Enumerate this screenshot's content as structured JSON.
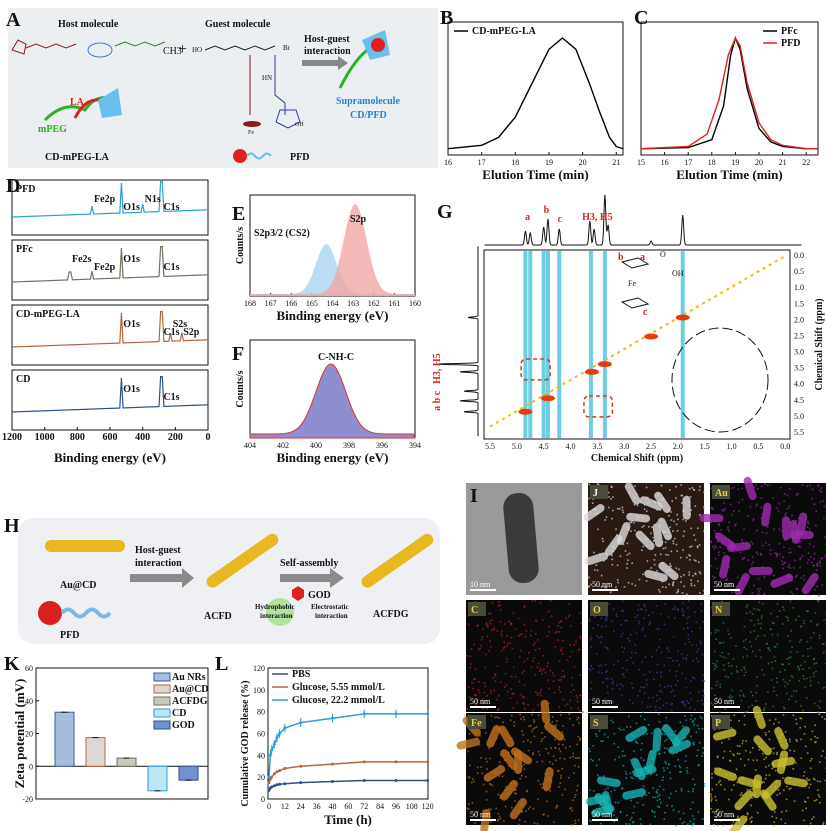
{
  "panels": {
    "A": {
      "letter": "A",
      "host": "Host molecule",
      "guest": "Guest molecule",
      "arrow": "Host-guest interaction",
      "arrow2": "interaction",
      "arrow1": "Host-guest",
      "la": "LA",
      "mpeg": "mPEG",
      "cd_name": "CD-mPEG-LA",
      "pfd": "PFD",
      "supra1": "Supramolecule",
      "supra2": "CD/PFD",
      "plus": "+",
      "ch3": "CH3",
      "fe": "Fe",
      "br": "Br",
      "ho": "HO",
      "hn": "HN",
      "oh": "OH"
    },
    "B": {
      "letter": "B"
    },
    "C": {
      "letter": "C"
    },
    "D": {
      "letter": "D",
      "xlabel": "Binding energy (eV)",
      "xticks": [
        "1200",
        "1000",
        "800",
        "600",
        "400",
        "200",
        "0"
      ],
      "spectra": [
        {
          "name": "PFD",
          "color": "#2a9fd8",
          "peaks": [
            "Fe2p",
            "O1s",
            "N1s",
            "C1s"
          ]
        },
        {
          "name": "PFc",
          "color": "#6b7560",
          "peaks": [
            "Fe2s",
            "Fe2p",
            "O1s",
            "C1s"
          ]
        },
        {
          "name": "CD-mPEG-LA",
          "color": "#b5643f",
          "peaks": [
            "O1s",
            "C1s",
            "S2s",
            "S2p"
          ]
        },
        {
          "name": "CD",
          "color": "#2d4f8a",
          "peaks": [
            "O1s",
            "C1s"
          ]
        }
      ]
    },
    "E": {
      "letter": "E",
      "ylabel": "Counts/s",
      "xlabel": "Binding energy (eV)",
      "xticks": [
        "168",
        "167",
        "166",
        "165",
        "164",
        "163",
        "162",
        "161",
        "160"
      ],
      "peak1": "S2p3/2 (CS2)",
      "peak2": "S2p"
    },
    "F": {
      "letter": "F",
      "ylabel": "Counts/s",
      "xlabel": "Binding energy (eV)",
      "xticks": [
        "404",
        "402",
        "400",
        "398",
        "396",
        "394"
      ],
      "peak": "C-NH-C"
    },
    "G": {
      "letter": "G",
      "xlabel": "Chemical Shift (ppm)",
      "ylabel": "Chemical Shift (ppm)",
      "xticks": [
        "5.5",
        "5.0",
        "4.5",
        "4.0",
        "3.5",
        "3.0",
        "2.5",
        "2.0",
        "1.5",
        "1.0",
        "0.5",
        "0.0"
      ],
      "yticks": [
        "0.0",
        "0.5",
        "1.0",
        "1.5",
        "2.0",
        "2.5",
        "3.0",
        "3.5",
        "4.0",
        "4.5",
        "5.0",
        "5.5"
      ],
      "labels": {
        "a": "a",
        "b": "b",
        "c": "c",
        "h3h5": "H3, H5",
        "fe": "Fe",
        "oh": "OH",
        "o": "O"
      }
    },
    "H": {
      "letter": "H",
      "aucd": "Au@CD",
      "pfd": "PFD",
      "arrow1a": "Host-guest",
      "arrow1b": "interaction",
      "acfd": "ACFD",
      "arrow2": "Self-assembly",
      "god": "GOD",
      "hydro1": "Hydrophobic",
      "hydro2": "interaction",
      "elec1": "Electrostatic",
      "elec2": "interaction",
      "acfdg": "ACFDG"
    },
    "I": {
      "letter": "I",
      "scale": "10 nm"
    },
    "J": {
      "letter": "J",
      "scale": "50 nm"
    },
    "maps": [
      {
        "label": "Au",
        "scale": "50 nm",
        "color": "#a02ab0"
      },
      {
        "label": "C",
        "scale": "50 nm",
        "color": "#c0202a"
      },
      {
        "label": "O",
        "scale": "50 nm",
        "color": "#4a3aa8"
      },
      {
        "label": "N",
        "scale": "50 nm",
        "color": "#2f8a3a"
      },
      {
        "label": "Fe",
        "scale": "50 nm",
        "color": "#c0701a"
      },
      {
        "label": "S",
        "scale": "50 nm",
        "color": "#18b0b0"
      },
      {
        "label": "P",
        "scale": "50 nm",
        "color": "#c8c030"
      }
    ],
    "K": {
      "letter": "K"
    },
    "L": {
      "letter": "L"
    }
  },
  "chart_data": [
    {
      "id": "B",
      "type": "line",
      "title": "",
      "xlabel": "Elution Time (min)",
      "ylabel": "",
      "xlim": [
        16,
        21.2
      ],
      "xticks": [
        "16",
        "17",
        "18",
        "19",
        "20",
        "21"
      ],
      "series": [
        {
          "name": "CD-mPEG-LA",
          "color": "#000000",
          "x": [
            16,
            17,
            17.5,
            18,
            18.5,
            19,
            19.4,
            19.8,
            20.2,
            20.5,
            20.8,
            21,
            21.2
          ],
          "y": [
            0.02,
            0.05,
            0.12,
            0.3,
            0.6,
            0.9,
            1.0,
            0.9,
            0.6,
            0.35,
            0.12,
            0.04,
            0.02
          ]
        }
      ],
      "legend": "top-left"
    },
    {
      "id": "C",
      "type": "line",
      "xlabel": "Elution Time (min)",
      "xlim": [
        15,
        22.5
      ],
      "xticks": [
        "15",
        "16",
        "17",
        "18",
        "19",
        "20",
        "21",
        "22"
      ],
      "series": [
        {
          "name": "PFc",
          "color": "#000000",
          "x": [
            15,
            17,
            18,
            18.5,
            18.8,
            19,
            19.2,
            19.5,
            20,
            20.5,
            21,
            22,
            22.5
          ],
          "y": [
            0.02,
            0.03,
            0.1,
            0.4,
            0.85,
            1.0,
            0.9,
            0.55,
            0.2,
            0.08,
            0.04,
            0.02,
            0.02
          ]
        },
        {
          "name": "PFD",
          "color": "#e02020",
          "x": [
            15,
            17,
            17.8,
            18.3,
            18.7,
            19,
            19.2,
            19.5,
            20,
            20.5,
            21,
            22,
            22.5
          ],
          "y": [
            0.02,
            0.04,
            0.15,
            0.45,
            0.85,
            1.0,
            0.93,
            0.6,
            0.25,
            0.1,
            0.05,
            0.02,
            0.02
          ]
        }
      ],
      "legend": "top-right"
    },
    {
      "id": "K",
      "type": "bar",
      "title": "",
      "xlabel": "",
      "ylabel": "Zeta potential (mV)",
      "ylim": [
        -20,
        60
      ],
      "yticks": [
        "-20",
        "0",
        "20",
        "40",
        "60"
      ],
      "categories": [
        "Au NRs",
        "Au@CD",
        "ACFDG",
        "CD",
        "GOD"
      ],
      "values": [
        33,
        17.5,
        5,
        -15,
        -8.5
      ],
      "colors": [
        "#a8bcdc",
        "#ddd8d4",
        "#c8c8bc",
        "#bfe4f4",
        "#7090d0"
      ],
      "edges": [
        "#3a5c9a",
        "#b5643f",
        "#6b7560",
        "#2aa0d8",
        "#2d4f8a"
      ],
      "legend": "top-right"
    },
    {
      "id": "L",
      "type": "line",
      "xlabel": "Time (h)",
      "ylabel": "Cumulative GOD release (%)",
      "xlim": [
        0,
        120
      ],
      "ylim": [
        0,
        120
      ],
      "xticks": [
        "0",
        "12",
        "24",
        "36",
        "48",
        "60",
        "72",
        "84",
        "96",
        "108",
        "120"
      ],
      "yticks": [
        "0",
        "20",
        "40",
        "60",
        "80",
        "100",
        "120"
      ],
      "x": [
        0,
        1,
        2,
        4,
        6,
        8,
        12,
        24,
        48,
        72,
        96,
        120
      ],
      "series": [
        {
          "name": "PBS",
          "color": "#2d4f8a",
          "values": [
            8,
            10,
            11,
            12,
            13,
            13.5,
            14,
            15,
            16,
            17,
            17,
            17
          ]
        },
        {
          "name": "Glucose, 5.55 mmol/L",
          "color": "#b5643f",
          "values": [
            15,
            18,
            20,
            23,
            25,
            26,
            28,
            30,
            32,
            34,
            34,
            34
          ]
        },
        {
          "name": "Glucose, 22.2 mmol/L",
          "color": "#2a9fd8",
          "values": [
            20,
            40,
            45,
            50,
            56,
            60,
            65,
            70,
            74,
            78,
            78,
            78
          ]
        }
      ],
      "legend": "top-left"
    }
  ]
}
